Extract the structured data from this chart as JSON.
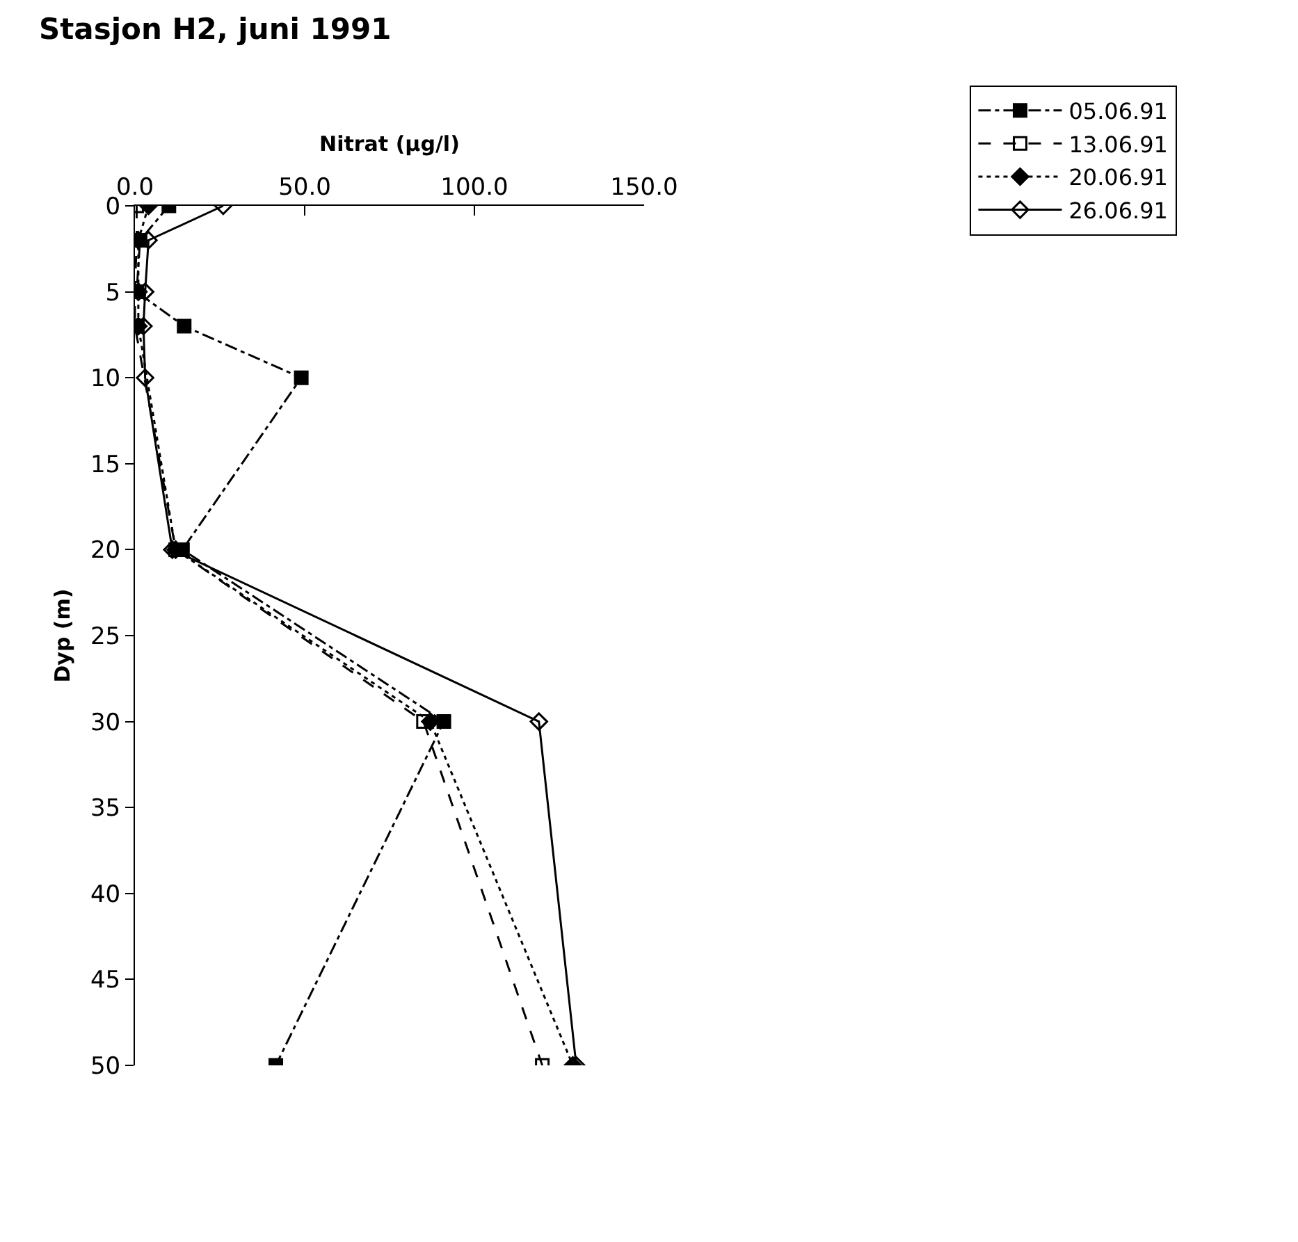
{
  "chart_data": {
    "type": "line",
    "title": "Stasjon H2, juni 1991",
    "xlabel": "Nitrat (µg/l)",
    "ylabel": "Dyp (m)",
    "xlim": [
      0,
      150
    ],
    "xticks": [
      {
        "value": 0,
        "label": "0.0"
      },
      {
        "value": 50,
        "label": "50.0"
      },
      {
        "value": 100,
        "label": "100.0"
      },
      {
        "value": 150,
        "label": "150.0"
      }
    ],
    "ylim": [
      50,
      0
    ],
    "yticks": [
      0,
      5,
      10,
      15,
      20,
      25,
      30,
      35,
      40,
      45,
      50
    ],
    "grid": false,
    "legend": "top right",
    "series": [
      {
        "name": "05.06.91",
        "color": "#000000",
        "marker": "square",
        "line_style": "dashdot",
        "x": [
          10,
          1.5,
          0.5,
          14.5,
          49,
          14,
          91,
          41.5
        ],
        "values": [
          0,
          2,
          5,
          7,
          10,
          20,
          30,
          50
        ]
      },
      {
        "name": "13.06.91",
        "color": "#000000",
        "marker": "square-open",
        "line_style": "dashed",
        "x": [
          0.5,
          0.5,
          0,
          0,
          12,
          85,
          120
        ],
        "values": [
          0,
          2,
          5,
          7,
          20,
          30,
          50
        ]
      },
      {
        "name": "20.06.91",
        "color": "#000000",
        "marker": "diamond",
        "line_style": "dotted",
        "x": [
          4,
          1,
          1,
          1,
          12,
          87,
          129
        ],
        "values": [
          0,
          2,
          5,
          7,
          20,
          30,
          50
        ]
      },
      {
        "name": "26.06.91",
        "color": "#000000",
        "marker": "diamond-open",
        "line_style": "solid",
        "x": [
          26,
          4,
          3,
          2.5,
          3,
          11,
          119,
          130
        ],
        "values": [
          0,
          2,
          5,
          7,
          10,
          20,
          30,
          50
        ]
      }
    ]
  }
}
